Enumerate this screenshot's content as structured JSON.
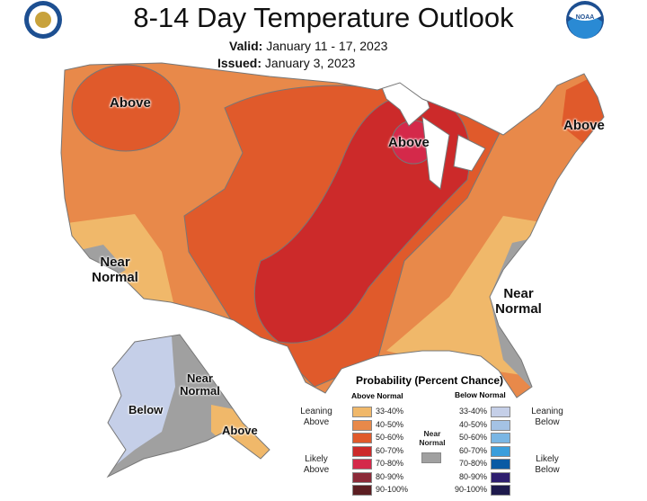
{
  "title": "8-14 Day Temperature Outlook",
  "valid_label": "Valid:",
  "valid_value": "January 11 - 17, 2023",
  "issued_label": "Issued:",
  "issued_value": "January 3, 2023",
  "logos": {
    "left": "Department of Commerce seal",
    "right": "NOAA"
  },
  "map_labels": {
    "nw": "Above",
    "gl": "Above",
    "ne": "Above",
    "sw1": "Near",
    "sw2": "Normal",
    "se1": "Near",
    "se2": "Normal",
    "ak_below": "Below",
    "ak_nn1": "Near",
    "ak_nn2": "Normal",
    "ak_above": "Above"
  },
  "legend": {
    "title": "Probability (Percent Chance)",
    "above_header": "Above Normal",
    "below_header": "Below Normal",
    "leaning_above": [
      "Leaning",
      "Above"
    ],
    "likely_above": [
      "Likely",
      "Above"
    ],
    "leaning_below": [
      "Leaning",
      "Below"
    ],
    "likely_below": [
      "Likely",
      "Below"
    ],
    "near_normal": [
      "Near",
      "Normal"
    ],
    "above": [
      {
        "range": "33-40%",
        "color": "#f0b86a"
      },
      {
        "range": "40-50%",
        "color": "#e8894a"
      },
      {
        "range": "50-60%",
        "color": "#e05a2b"
      },
      {
        "range": "60-70%",
        "color": "#cc2a2a"
      },
      {
        "range": "70-80%",
        "color": "#d4294a"
      },
      {
        "range": "80-90%",
        "color": "#8c2a38"
      },
      {
        "range": "90-100%",
        "color": "#5c1e22"
      }
    ],
    "below": [
      {
        "range": "33-40%",
        "color": "#c5cfe8"
      },
      {
        "range": "40-50%",
        "color": "#a4c2e4"
      },
      {
        "range": "50-60%",
        "color": "#7ab6e4"
      },
      {
        "range": "60-70%",
        "color": "#3a9edc"
      },
      {
        "range": "70-80%",
        "color": "#0a5aa4"
      },
      {
        "range": "80-90%",
        "color": "#2e1e6e"
      },
      {
        "range": "90-100%",
        "color": "#1e1a4c"
      }
    ],
    "near_color": "#a0a0a0"
  }
}
